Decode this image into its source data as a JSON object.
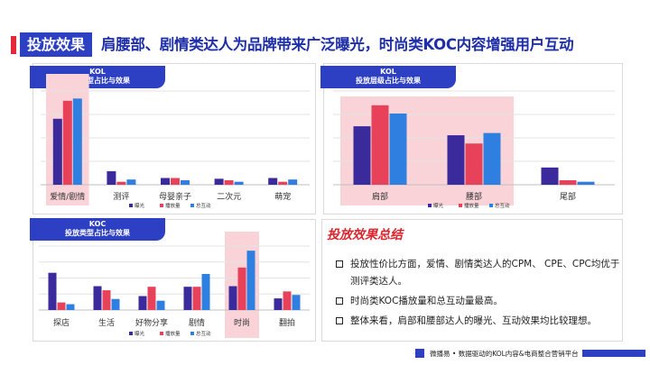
{
  "header": {
    "tag": "投放效果",
    "headline": "肩腰部、剧情类达人为品牌带来广泛曝光，时尚类KOC内容增强用户互动"
  },
  "legend": [
    "曝光",
    "播放量",
    "总互动"
  ],
  "colors": {
    "series1": "#3a2a9c",
    "series2": "#e8425b",
    "series3": "#2f7fe0",
    "highlight": "#f9d3d8",
    "accent": "#2d3fc2"
  },
  "panels": {
    "kol_type": {
      "tab_line1": "KOL",
      "tab_line2": "投放类型占比与效果"
    },
    "kol_tier": {
      "tab_line1": "KOL",
      "tab_line2": "投放层级占比与效果"
    },
    "koc_type": {
      "tab_line1": "KOC",
      "tab_line2": "投放类型占比与效果"
    }
  },
  "summary": {
    "title": "投放效果总结",
    "items": [
      "投放性价比方面，爱情、剧情类达人的CPM、 CPE、CPC均优于测评类达人。",
      "时尚类KOC播放量和总互动量最高。",
      "整体来看，肩部和腰部达人的曝光、互动效果均比较理想。"
    ]
  },
  "footer": {
    "text": "微播易 • 数据驱动的KOL内容&电商整合营销平台"
  },
  "chart_data": [
    {
      "type": "bar",
      "categories": [
        "爱情/剧情",
        "测评",
        "母婴亲子",
        "二次元",
        "萌宠"
      ],
      "series": [
        {
          "name": "曝光",
          "values": [
            88,
            18,
            9,
            8,
            9
          ]
        },
        {
          "name": "播放量",
          "values": [
            112,
            4,
            9,
            6,
            4
          ]
        },
        {
          "name": "总互动",
          "values": [
            115,
            7,
            6,
            4,
            7
          ]
        }
      ],
      "highlight": "爱情/剧情",
      "legend_position": "bottom"
    },
    {
      "type": "bar",
      "categories": [
        "肩部",
        "腰部",
        "尾部"
      ],
      "series": [
        {
          "name": "曝光",
          "values": [
            78,
            66,
            23
          ]
        },
        {
          "name": "播放量",
          "values": [
            106,
            55,
            6
          ]
        },
        {
          "name": "总互动",
          "values": [
            95,
            69,
            4
          ]
        }
      ],
      "highlight": [
        "肩部",
        "腰部"
      ],
      "legend_position": "bottom"
    },
    {
      "type": "bar",
      "categories": [
        "探店",
        "生活",
        "好物分享",
        "剧情",
        "时尚",
        "翻拍"
      ],
      "series": [
        {
          "name": "曝光",
          "values": [
            64,
            41,
            24,
            40,
            41,
            20
          ]
        },
        {
          "name": "播放量",
          "values": [
            13,
            34,
            40,
            40,
            73,
            32
          ]
        },
        {
          "name": "总互动",
          "values": [
            10,
            19,
            16,
            62,
            102,
            26
          ]
        }
      ],
      "highlight": "时尚",
      "legend_position": "bottom"
    }
  ]
}
